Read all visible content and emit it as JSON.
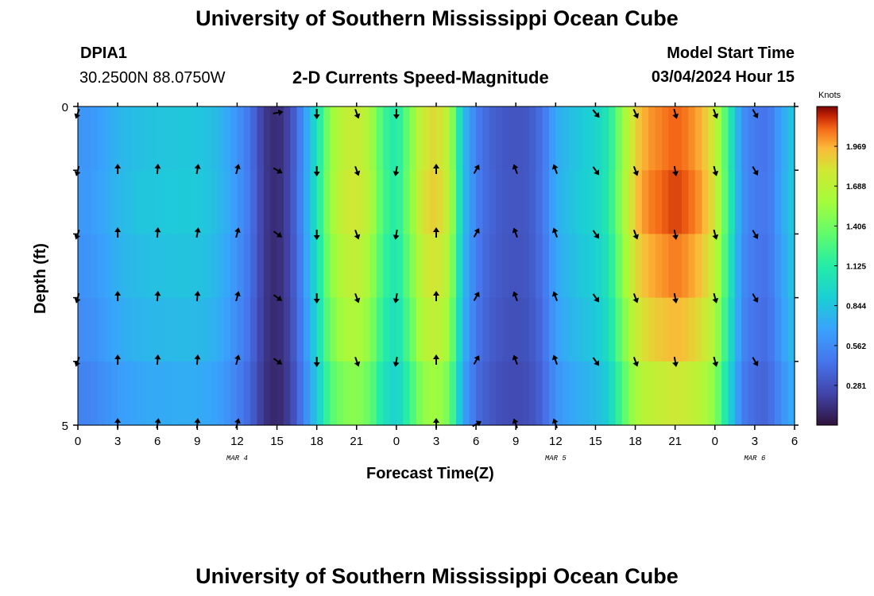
{
  "header": {
    "title_top": "University of Southern Mississippi Ocean Cube",
    "title_bottom": "University of Southern Mississippi Ocean Cube",
    "station": "DPIA1",
    "coords": "30.2500N  88.0750W",
    "plot_title": "2-D Currents Speed-Magnitude",
    "model_label": "Model Start Time",
    "model_time": "03/04/2024 Hour 15"
  },
  "chart_data": {
    "type": "heatmap",
    "title": "2-D Currents Speed-Magnitude",
    "xlabel": "Forecast Time(Z)",
    "ylabel": "Depth (ft)",
    "colorbar_label": "Knots",
    "colorbar_ticks": [
      "1.969",
      "1.688",
      "1.406",
      "1.125",
      "0.844",
      "0.562",
      "0.281"
    ],
    "colorbar_values": [
      1.969,
      1.688,
      1.406,
      1.125,
      0.844,
      0.562,
      0.281
    ],
    "color_range": [
      0,
      2.25
    ],
    "x_hours": [
      0,
      3,
      6,
      9,
      12,
      15,
      18,
      21,
      24,
      27,
      30,
      33,
      36,
      39,
      42,
      45,
      48,
      51,
      54
    ],
    "x_tick_labels": [
      "0",
      "3",
      "6",
      "9",
      "12",
      "15",
      "18",
      "21",
      "0",
      "3",
      "6",
      "9",
      "12",
      "15",
      "18",
      "21",
      "0",
      "3",
      "6"
    ],
    "date_labels": [
      {
        "label": "MAR 4",
        "hour": 12
      },
      {
        "label": "MAR 5",
        "hour": 36
      },
      {
        "label": "MAR 6",
        "hour": 51
      }
    ],
    "y_tick_labels": [
      "0",
      "5"
    ],
    "ylim": [
      0,
      5
    ],
    "depth_rows": 5,
    "speed_profile": [
      [
        0,
        0.62
      ],
      [
        1,
        0.64
      ],
      [
        2,
        0.7
      ],
      [
        3,
        0.78
      ],
      [
        4,
        0.82
      ],
      [
        5,
        0.85
      ],
      [
        6,
        0.86
      ],
      [
        7,
        0.87
      ],
      [
        8,
        0.88
      ],
      [
        9,
        0.87
      ],
      [
        10,
        0.84
      ],
      [
        11,
        0.76
      ],
      [
        12,
        0.62
      ],
      [
        13,
        0.45
      ],
      [
        14,
        0.18
      ],
      [
        15,
        0.1
      ],
      [
        16,
        0.25
      ],
      [
        17,
        0.6
      ],
      [
        18,
        1.05
      ],
      [
        19,
        1.55
      ],
      [
        20,
        1.75
      ],
      [
        21,
        1.8
      ],
      [
        22,
        1.65
      ],
      [
        23,
        1.25
      ],
      [
        24,
        1.1
      ],
      [
        25,
        1.45
      ],
      [
        26,
        1.82
      ],
      [
        27,
        1.9
      ],
      [
        28,
        1.7
      ],
      [
        29,
        0.85
      ],
      [
        30,
        0.5
      ],
      [
        31,
        0.38
      ],
      [
        32,
        0.32
      ],
      [
        33,
        0.3
      ],
      [
        34,
        0.32
      ],
      [
        35,
        0.45
      ],
      [
        36,
        0.72
      ],
      [
        37,
        0.82
      ],
      [
        38,
        0.9
      ],
      [
        39,
        0.95
      ],
      [
        40,
        1.1
      ],
      [
        41,
        1.55
      ],
      [
        42,
        1.92
      ],
      [
        43,
        2.05
      ],
      [
        44,
        2.1
      ],
      [
        45,
        2.15
      ],
      [
        46,
        2.1
      ],
      [
        47,
        2.0
      ],
      [
        48,
        1.8
      ],
      [
        49,
        1.2
      ],
      [
        50,
        0.6
      ],
      [
        51,
        0.48
      ],
      [
        52,
        0.45
      ],
      [
        53,
        0.7
      ],
      [
        54,
        0.9
      ]
    ],
    "depth_factors": [
      0.98,
      1.0,
      0.96,
      0.91,
      0.83
    ],
    "vector_columns": [
      {
        "hour": 0,
        "angles": [
          200,
          195,
          200,
          195,
          200
        ]
      },
      {
        "hour": 3,
        "angles": [
          null,
          0,
          0,
          0,
          0,
          0
        ]
      },
      {
        "hour": 6,
        "angles": [
          null,
          5,
          5,
          5,
          5,
          10
        ]
      },
      {
        "hour": 9,
        "angles": [
          null,
          10,
          10,
          5,
          5,
          5
        ]
      },
      {
        "hour": 12,
        "angles": [
          null,
          15,
          15,
          15,
          15,
          15
        ]
      },
      {
        "hour": 15,
        "angles": [
          80,
          120,
          125,
          125,
          125
        ]
      },
      {
        "hour": 18,
        "angles": [
          180,
          180,
          180,
          180,
          180
        ]
      },
      {
        "hour": 21,
        "angles": [
          160,
          160,
          160,
          160,
          160
        ]
      },
      {
        "hour": 24,
        "angles": [
          180,
          190,
          190,
          190,
          190
        ]
      },
      {
        "hour": 27,
        "angles": [
          null,
          0,
          0,
          0,
          0,
          0
        ]
      },
      {
        "hour": 30,
        "angles": [
          null,
          30,
          30,
          30,
          30,
          60
        ]
      },
      {
        "hour": 33,
        "angles": [
          null,
          340,
          340,
          340,
          340,
          340
        ]
      },
      {
        "hour": 36,
        "angles": [
          null,
          340,
          340,
          340,
          340,
          340
        ]
      },
      {
        "hour": 39,
        "angles": [
          140,
          145,
          145,
          145,
          145
        ]
      },
      {
        "hour": 42,
        "angles": [
          155,
          160,
          160,
          160,
          160
        ]
      },
      {
        "hour": 45,
        "angles": [
          165,
          170,
          170,
          170,
          170
        ]
      },
      {
        "hour": 48,
        "angles": [
          160,
          165,
          165,
          165,
          165
        ]
      },
      {
        "hour": 51,
        "angles": [
          150,
          150,
          150,
          150,
          150
        ]
      }
    ]
  }
}
